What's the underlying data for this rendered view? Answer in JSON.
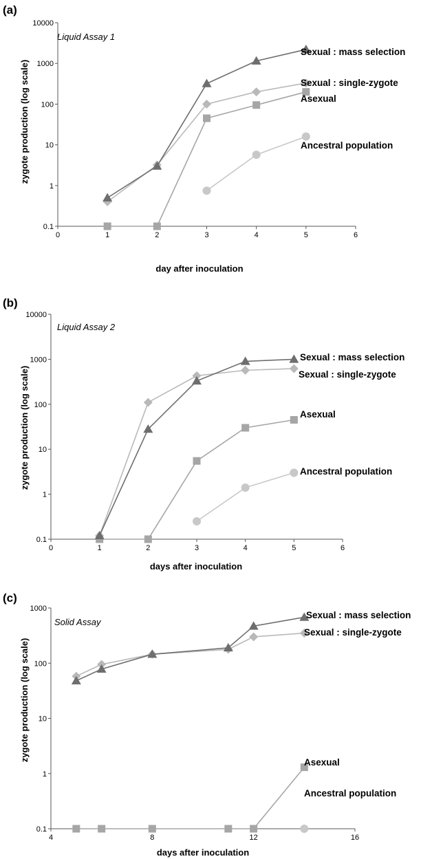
{
  "colors": {
    "dark": "#6e6e6e",
    "diamond": "#b9b9b9",
    "square": "#a6a6a6",
    "circle": "#c8c8c8"
  },
  "chart_data": [
    {
      "type": "line",
      "panel_label": "(a)",
      "title": "Liquid Assay 1",
      "xlabel": "day after inoculation",
      "ylabel": "zygote production (log scale)",
      "y_scale": "log",
      "xlim": [
        0,
        6
      ],
      "ylim": [
        0.1,
        10000
      ],
      "x_ticks": [
        0,
        1,
        2,
        3,
        4,
        5,
        6
      ],
      "y_ticks": [
        0.1,
        1,
        10,
        100,
        1000,
        10000
      ],
      "y_tick_labels": [
        "0.1",
        "1",
        "10",
        "100",
        "1000",
        "10000"
      ],
      "series": [
        {
          "name": "Sexual : mass selection",
          "marker": "triangle",
          "color": "#6e6e6e",
          "x": [
            1,
            2,
            3,
            4,
            5
          ],
          "y": [
            0.5,
            3,
            320,
            1150,
            2200
          ]
        },
        {
          "name": "Sexual : single-zygote",
          "marker": "diamond",
          "color": "#b9b9b9",
          "x": [
            1,
            2,
            3,
            4,
            5
          ],
          "y": [
            0.4,
            3.2,
            100,
            200,
            330
          ]
        },
        {
          "name": "Asexual",
          "marker": "square",
          "color": "#a6a6a6",
          "x": [
            1,
            2,
            3,
            4,
            5
          ],
          "y": [
            0.1,
            0.1,
            45,
            95,
            200
          ]
        },
        {
          "name": "Ancestral population",
          "marker": "circle",
          "color": "#c8c8c8",
          "x": [
            3,
            4,
            5
          ],
          "y": [
            0.75,
            5.7,
            16
          ]
        }
      ]
    },
    {
      "type": "line",
      "panel_label": "(b)",
      "title": "Liquid Assay 2",
      "xlabel": "days after inoculation",
      "ylabel": "zygote production (log scale)",
      "y_scale": "log",
      "xlim": [
        0,
        6
      ],
      "ylim": [
        0.1,
        10000
      ],
      "x_ticks": [
        0,
        1,
        2,
        3,
        4,
        5,
        6
      ],
      "y_ticks": [
        0.1,
        1,
        10,
        100,
        1000,
        10000
      ],
      "y_tick_labels": [
        "0.1",
        "1",
        "10",
        "100",
        "1000",
        "10000"
      ],
      "series": [
        {
          "name": "Sexual : mass selection",
          "marker": "triangle",
          "color": "#6e6e6e",
          "x": [
            1,
            2,
            3,
            4,
            5
          ],
          "y": [
            0.12,
            28,
            330,
            900,
            1000
          ]
        },
        {
          "name": "Sexual : single-zygote",
          "marker": "diamond",
          "color": "#b9b9b9",
          "x": [
            1,
            2,
            3,
            4,
            5
          ],
          "y": [
            0.12,
            110,
            430,
            570,
            620
          ]
        },
        {
          "name": "Asexual",
          "marker": "square",
          "color": "#a6a6a6",
          "x": [
            1,
            2,
            3,
            4,
            5
          ],
          "y": [
            0.1,
            0.1,
            5.5,
            30,
            45
          ]
        },
        {
          "name": "Ancestral population",
          "marker": "circle",
          "color": "#c8c8c8",
          "x": [
            3,
            4,
            5
          ],
          "y": [
            0.25,
            1.4,
            3
          ]
        }
      ]
    },
    {
      "type": "line",
      "panel_label": "(c)",
      "title": "Solid Assay",
      "xlabel": "days after inoculation",
      "ylabel": "zygote production (log scale)",
      "y_scale": "log",
      "xlim": [
        4,
        16
      ],
      "ylim": [
        0.1,
        1000
      ],
      "x_ticks": [
        4,
        8,
        12,
        16
      ],
      "y_ticks": [
        0.1,
        1,
        10,
        100,
        1000
      ],
      "y_tick_labels": [
        "0.1",
        "1",
        "10",
        "100",
        "1000"
      ],
      "series": [
        {
          "name": "Sexual : mass selection",
          "marker": "triangle",
          "color": "#6e6e6e",
          "x": [
            5,
            6,
            8,
            11,
            12,
            14
          ],
          "y": [
            48,
            78,
            145,
            190,
            470,
            680
          ]
        },
        {
          "name": "Sexual : single-zygote",
          "marker": "diamond",
          "color": "#b9b9b9",
          "x": [
            5,
            6,
            8,
            11,
            12,
            14
          ],
          "y": [
            58,
            95,
            145,
            178,
            300,
            350
          ]
        },
        {
          "name": "Asexual",
          "marker": "square",
          "color": "#a6a6a6",
          "x": [
            5,
            6,
            8,
            11,
            12,
            14
          ],
          "y": [
            0.1,
            0.1,
            0.1,
            0.1,
            0.1,
            1.3
          ]
        },
        {
          "name": "Ancestral population",
          "marker": "circle",
          "color": "#c8c8c8",
          "x": [
            14
          ],
          "y": [
            0.1
          ]
        }
      ]
    }
  ]
}
